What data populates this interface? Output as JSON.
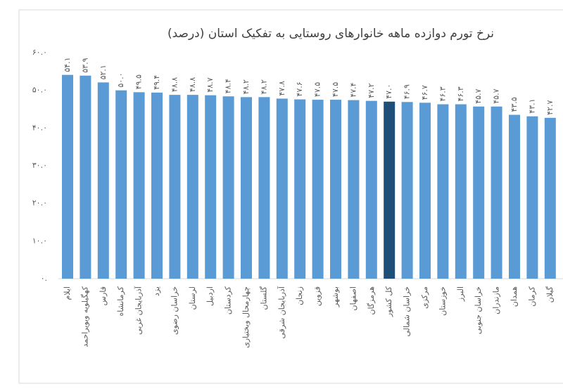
{
  "chart_data": {
    "type": "bar",
    "title": "نرخ تورم دوازده ماهه خانوارهای روستایی به تفکیک استان (درصد)",
    "categories": [
      "ایلام",
      "کهگیلویه وبویراحمد",
      "فارس",
      "کرمانشاه",
      "آذربایجان غربی",
      "یزد",
      "خراسان رضوی",
      "لرستان",
      "اردبیل",
      "کردستان",
      "چهارمحال وبختیاری",
      "گلستان",
      "آذربایجان شرقی",
      "زنجان",
      "قزوین",
      "بوشهر",
      "اصفهان",
      "هرمزگان",
      "کل کشور",
      "خراسان شمالی",
      "مرکزی",
      "خوزستان",
      "البرز",
      "خراسان جنوبی",
      "مازندران",
      "همدان",
      "کرمان",
      "گیلان"
    ],
    "values": [
      54.1,
      53.9,
      52.1,
      50.0,
      49.5,
      49.4,
      48.8,
      48.8,
      48.7,
      48.4,
      48.2,
      48.2,
      47.8,
      47.6,
      47.5,
      47.5,
      47.4,
      47.2,
      47.0,
      46.9,
      46.7,
      46.3,
      46.3,
      45.7,
      45.7,
      43.5,
      43.1,
      42.7
    ],
    "value_labels": [
      "۵۴.۱",
      "۵۳.۹",
      "۵۲.۱",
      "۵۰.۰",
      "۴۹.۵",
      "۴۹.۴",
      "۴۸.۸",
      "۴۸.۸",
      "۴۸.۷",
      "۴۸.۴",
      "۴۸.۲",
      "۴۸.۲",
      "۴۷.۸",
      "۴۷.۶",
      "۴۷.۵",
      "۴۷.۵",
      "۴۷.۴",
      "۴۷.۲",
      "۴۷.۰",
      "۴۶.۹",
      "۴۶.۷",
      "۴۶.۳",
      "۴۶.۳",
      "۴۵.۷",
      "۴۵.۷",
      "۴۳.۵",
      "۴۳.۱",
      "۴۲.۷"
    ],
    "colors": [
      "#5b9bd5",
      "#5b9bd5",
      "#5b9bd5",
      "#5b9bd5",
      "#5b9bd5",
      "#5b9bd5",
      "#5b9bd5",
      "#5b9bd5",
      "#5b9bd5",
      "#5b9bd5",
      "#5b9bd5",
      "#5b9bd5",
      "#5b9bd5",
      "#5b9bd5",
      "#5b9bd5",
      "#5b9bd5",
      "#5b9bd5",
      "#5b9bd5",
      "#1f4e79",
      "#5b9bd5",
      "#5b9bd5",
      "#5b9bd5",
      "#5b9bd5",
      "#5b9bd5",
      "#5b9bd5",
      "#5b9bd5",
      "#5b9bd5",
      "#5b9bd5"
    ],
    "ylim": [
      0,
      60
    ],
    "yticks": [
      {
        "value": 0,
        "label": "۰."
      },
      {
        "value": 10,
        "label": "۱۰.۰"
      },
      {
        "value": 20,
        "label": "۲۰.۰"
      },
      {
        "value": 30,
        "label": "۳۰.۰"
      },
      {
        "value": 40,
        "label": "۴۰.۰"
      },
      {
        "value": 50,
        "label": "۵۰.۰"
      },
      {
        "value": 60,
        "label": "۶۰.۰"
      }
    ],
    "grid": false
  }
}
